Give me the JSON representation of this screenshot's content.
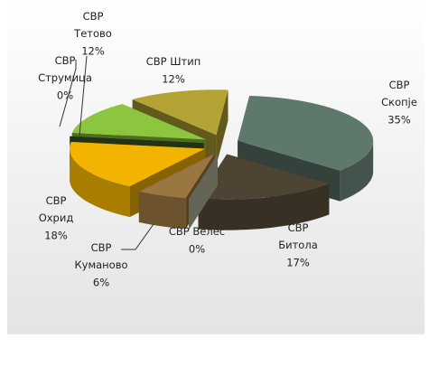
{
  "chart_data": {
    "type": "pie3d",
    "categories": [
      "СВР Скопје",
      "СВР Битола",
      "СВР Велес",
      "СВР Куманово",
      "СВР Охрид",
      "СВР Струмица",
      "СВР Тетово",
      "СВР Штип"
    ],
    "values": [
      35,
      17,
      0,
      6,
      18,
      0,
      12,
      12
    ],
    "value_labels": [
      "35%",
      "17%",
      "0%",
      "6%",
      "18%",
      "0%",
      "12%",
      "12%"
    ],
    "colors": [
      "#5f786c",
      "#4e4434",
      "#b8b79a",
      "#9a7640",
      "#f2b400",
      "#3f5a20",
      "#8cc63f",
      "#b3a234"
    ]
  }
}
